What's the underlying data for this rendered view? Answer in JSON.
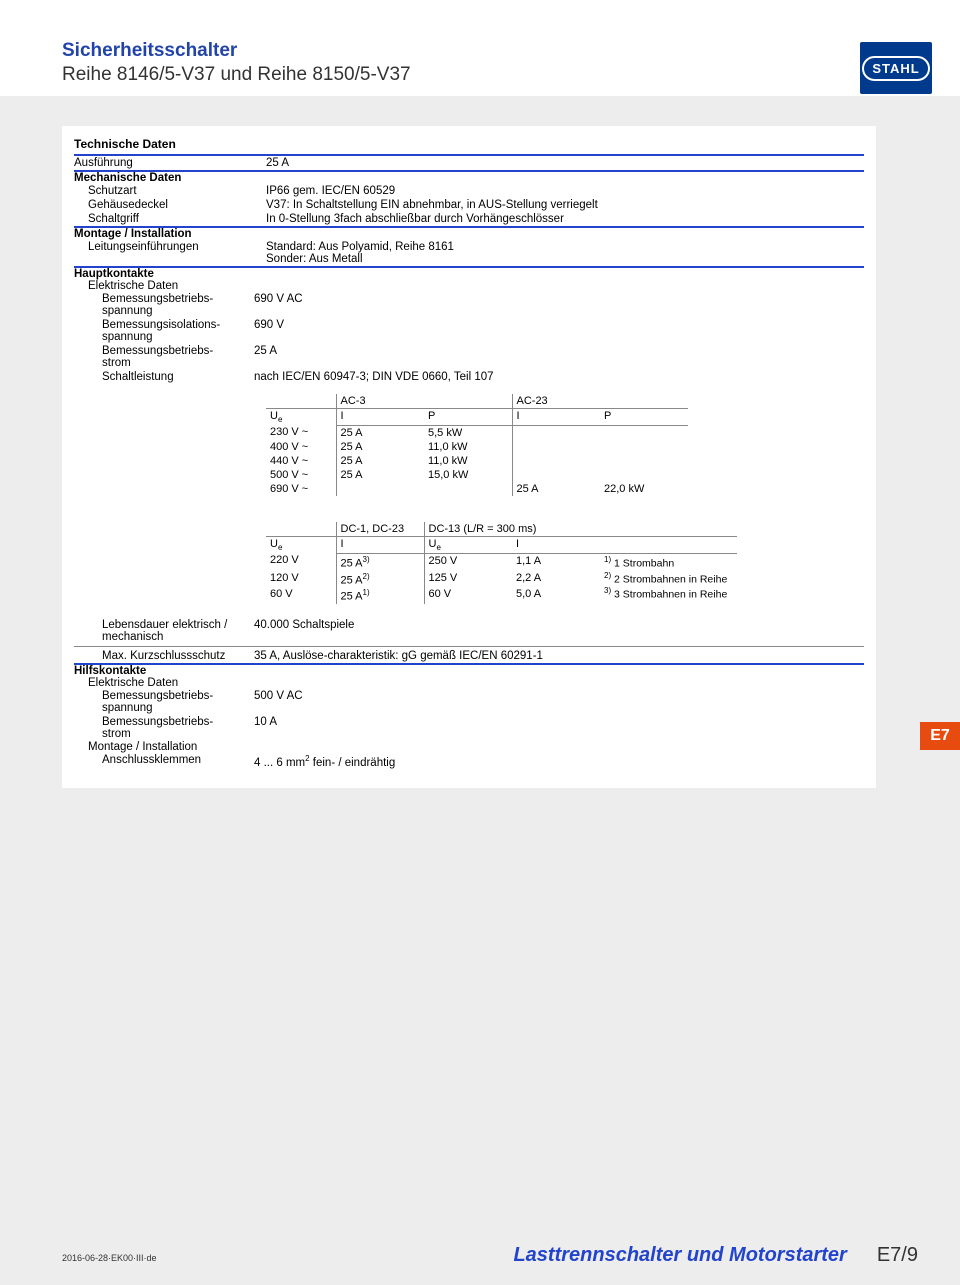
{
  "header": {
    "title": "Sicherheitsschalter",
    "subtitle": "Reihe 8146/5-V37 und Reihe 8150/5-V37",
    "logo_text": "STAHL"
  },
  "sections": {
    "tech_head": "Technische Daten",
    "ausfuehrung_lbl": "Ausführung",
    "ausfuehrung_val": "25 A",
    "mech_head": "Mechanische Daten",
    "schutzart_lbl": "Schutzart",
    "schutzart_val": "IP66 gem. IEC/EN 60529",
    "deckel_lbl": "Gehäusedeckel",
    "deckel_val": "V37: In Schaltstellung EIN abnehmbar, in AUS-Stellung verriegelt",
    "griff_lbl": "Schaltgriff",
    "griff_val": "In 0-Stellung 3fach abschließbar durch Vorhängeschlösser",
    "montage_head": "Montage / Installation",
    "leitung_lbl": "Leitungseinführungen",
    "leitung_val_l1": "Standard: Aus Polyamid, Reihe 8161",
    "leitung_val_l2": "Sonder: Aus Metall",
    "haupt_head": "Hauptkontakte",
    "elek_head": "Elektrische Daten",
    "bemess_spannung_lbl": "Bemessungsbetriebs-spannung",
    "bemess_spannung_val": "690 V AC",
    "iso_spannung_lbl": "Bemessungsisolations-spannung",
    "iso_spannung_val": "690 V",
    "bemess_strom_lbl": "Bemessungsbetriebs-strom",
    "bemess_strom_val": "25 A",
    "schaltleistung_lbl": "Schaltleistung",
    "schaltleistung_val": "nach IEC/EN 60947-3; DIN VDE 0660, Teil 107",
    "leben_lbl": "Lebensdauer elektrisch / mechanisch",
    "leben_val": "40.000 Schaltspiele",
    "kurz_lbl": "Max. Kurzschlussschutz",
    "kurz_val": "35 A, Auslöse-charakteristik: gG gemäß IEC/EN 60291-1",
    "hilfs_head": "Hilfskontakte",
    "h_elek_head": "Elektrische Daten",
    "h_spannung_lbl": "Bemessungsbetriebs-spannung",
    "h_spannung_val": "500 V  AC",
    "h_strom_lbl": "Bemessungsbetriebs-strom",
    "h_strom_val": "10 A",
    "h_montage_head": "Montage / Installation",
    "klemmen_lbl": "Anschlussklemmen",
    "klemmen_val_pre": "4 ... 6 mm",
    "klemmen_val_sup": "2",
    "klemmen_val_post": " fein- / eindrähtig"
  },
  "table_ac": {
    "col_Ue": "U",
    "col_Ue_sub": "e",
    "grp_ac3": "AC-3",
    "grp_ac23": "AC-23",
    "col_I": "I",
    "col_P": "P",
    "rows": [
      {
        "u": "230 V ~",
        "ac3_i": "25 A",
        "ac3_p": "5,5 kW",
        "ac23_i": "",
        "ac23_p": ""
      },
      {
        "u": "400 V ~",
        "ac3_i": "25 A",
        "ac3_p": "11,0 kW",
        "ac23_i": "",
        "ac23_p": ""
      },
      {
        "u": "440 V ~",
        "ac3_i": "25 A",
        "ac3_p": "11,0 kW",
        "ac23_i": "",
        "ac23_p": ""
      },
      {
        "u": "500 V ~",
        "ac3_i": "25 A",
        "ac3_p": "15,0 kW",
        "ac23_i": "",
        "ac23_p": ""
      },
      {
        "u": "690 V ~",
        "ac3_i": "",
        "ac3_p": "",
        "ac23_i": "25 A",
        "ac23_p": "22,0 kW"
      }
    ]
  },
  "table_dc": {
    "grp_dc1": "DC-1, DC-23",
    "grp_dc13": "DC-13 (L/R = 300 ms)",
    "col_Ue": "U",
    "col_Ue_sub": "e",
    "col_I": "I",
    "rows": [
      {
        "u1": "220 V",
        "i1": "25 A",
        "i1_sup": "3)",
        "u2": "250 V",
        "i2": "1,1 A"
      },
      {
        "u1": "120 V",
        "i1": "25 A",
        "i1_sup": "2)",
        "u2": "125 V",
        "i2": "2,2 A"
      },
      {
        "u1": "60 V",
        "i1": "25 A",
        "i1_sup": "1)",
        "u2": "60 V",
        "i2": "5,0 A"
      }
    ],
    "legend": [
      {
        "sup": "1)",
        "text": " 1 Strombahn"
      },
      {
        "sup": "2)",
        "text": " 2 Strombahnen in Reihe"
      },
      {
        "sup": "3)",
        "text": " 3 Strombahnen in Reihe"
      }
    ]
  },
  "side_tab": "E7",
  "footer": {
    "id": "2016-06-28·EK00·III·de",
    "category": "Lasttrennschalter und Motorstarter",
    "page": "E7/9"
  },
  "colors": {
    "accent_blue": "#2244cc",
    "logo_blue": "#003a8c",
    "tab_orange": "#e84b0f",
    "page_bg": "#ededed"
  }
}
